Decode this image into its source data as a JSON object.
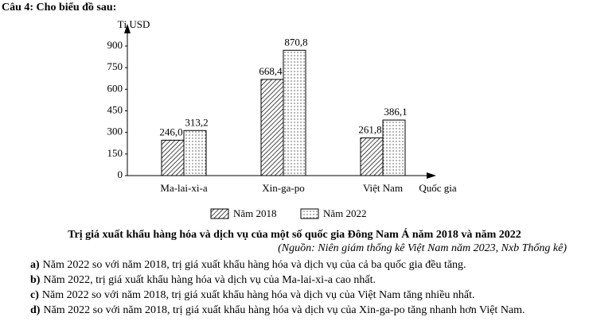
{
  "question": "Câu 4: Cho biểu đồ sau:",
  "chart_data": {
    "type": "bar",
    "y_label": "Tỉ USD",
    "x_label": "Quốc gia",
    "categories": [
      "Ma-lai-xi-a",
      "Xin-ga-po",
      "Việt Nam"
    ],
    "series": [
      {
        "name": "Năm 2018",
        "pattern": "hatch",
        "color": "#000000",
        "values": [
          246.0,
          668.4,
          261.8
        ],
        "value_labels": [
          "246,0",
          "668,4",
          "261,8"
        ]
      },
      {
        "name": "Năm 2022",
        "pattern": "dots",
        "color": "#000000",
        "values": [
          313.2,
          870.8,
          386.1
        ],
        "value_labels": [
          "313,2",
          "870,8",
          "386,1"
        ]
      }
    ],
    "ylim": [
      0,
      900
    ],
    "yticks": [
      0,
      150,
      300,
      450,
      600,
      750,
      900
    ]
  },
  "caption": "Trị giá xuất khẩu hàng hóa và dịch vụ của một số quốc gia Đông Nam Á năm 2018 và năm 2022",
  "source": "(Nguồn: Niên giám thống kê Việt Nam năm 2023, Nxb Thống kê)",
  "options": [
    {
      "letter": "a)",
      "text": "Năm 2022 so với năm 2018, trị giá xuất khẩu hàng hóa và dịch vụ của cả ba quốc gia đều tăng."
    },
    {
      "letter": "b)",
      "text": "Năm 2022, trị giá xuất khẩu hàng hóa và dịch vụ của Ma-lai-xi-a cao nhất."
    },
    {
      "letter": "c)",
      "text": "Năm 2022 so với năm 2018, trị giá xuất khẩu hàng hóa và dịch vụ của Việt Nam tăng nhiều nhất."
    },
    {
      "letter": "d)",
      "text": "Năm 2022 so với năm 2018, trị giá xuất khẩu hàng hóa và dịch vụ của Xin-ga-po tăng nhanh hơn Việt Nam."
    }
  ]
}
